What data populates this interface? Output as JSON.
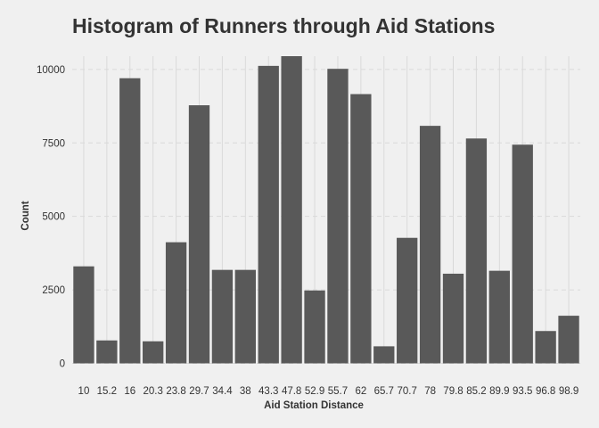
{
  "chart_data": {
    "type": "bar",
    "title": "Histogram of Runners through Aid Stations",
    "xlabel": "Aid Station Distance",
    "ylabel": "Count",
    "categories": [
      "10",
      "15.2",
      "16",
      "20.3",
      "23.8",
      "29.7",
      "34.4",
      "38",
      "43.3",
      "47.8",
      "52.9",
      "55.7",
      "62",
      "65.7",
      "70.7",
      "78",
      "79.8",
      "85.2",
      "89.9",
      "93.5",
      "96.8",
      "98.9"
    ],
    "values": [
      3300,
      780,
      9700,
      750,
      4120,
      8780,
      3180,
      3180,
      10120,
      10450,
      2480,
      10020,
      9160,
      580,
      4270,
      8080,
      3050,
      7650,
      3150,
      7440,
      1100,
      1620
    ],
    "ylim": [
      0,
      10450
    ],
    "yticks": [
      0,
      2500,
      5000,
      7500,
      10000
    ],
    "ytick_labels": [
      "0",
      "2500",
      "5000",
      "7500",
      "10000"
    ],
    "grid": true,
    "legend": "none",
    "bar_color": "#595959",
    "background_color": "#f0f0f0",
    "grid_color": "#d9d9d9"
  }
}
